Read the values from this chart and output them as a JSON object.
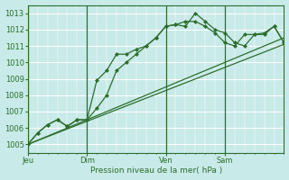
{
  "background_color": "#c8eae8",
  "grid_major_color": "#b8d8d8",
  "grid_minor_color": "#d0e8e8",
  "line_color": "#2d6e2d",
  "marker_color": "#2d6e2d",
  "xlabel": "Pression niveau de la mer( hPa )",
  "ylim": [
    1004.5,
    1013.5
  ],
  "yticks": [
    1005,
    1006,
    1007,
    1008,
    1009,
    1010,
    1011,
    1012,
    1013
  ],
  "day_labels": [
    "Jeu",
    "Dim",
    "Ven",
    "Sam"
  ],
  "day_positions": [
    0,
    72,
    168,
    240
  ],
  "total_hours": 312,
  "lines": [
    {
      "x": [
        0,
        12,
        24,
        36,
        48,
        60,
        72,
        84,
        96,
        108,
        120,
        132,
        144,
        156,
        168,
        180,
        192,
        204,
        216,
        228,
        240,
        252,
        264,
        276,
        288,
        300,
        312
      ],
      "y": [
        1005.0,
        1005.7,
        1006.2,
        1006.5,
        1006.1,
        1006.5,
        1006.5,
        1008.9,
        1009.5,
        1010.5,
        1010.5,
        1010.8,
        1011.0,
        1011.5,
        1012.2,
        1012.3,
        1012.2,
        1013.0,
        1012.5,
        1012.0,
        1011.8,
        1011.2,
        1011.0,
        1011.7,
        1011.7,
        1012.2,
        1011.2
      ]
    },
    {
      "x": [
        0,
        12,
        24,
        36,
        48,
        60,
        72,
        84,
        96,
        108,
        120,
        132,
        144,
        156,
        168,
        180,
        192,
        204,
        216,
        228,
        240,
        252,
        264,
        276,
        288,
        300,
        312
      ],
      "y": [
        1005.0,
        1005.7,
        1006.2,
        1006.5,
        1006.1,
        1006.5,
        1006.5,
        1007.2,
        1008.0,
        1009.5,
        1010.0,
        1010.5,
        1011.0,
        1011.5,
        1012.2,
        1012.3,
        1012.5,
        1012.5,
        1012.2,
        1011.8,
        1011.2,
        1011.0,
        1011.7,
        1011.7,
        1011.8,
        1012.2,
        1011.2
      ]
    },
    {
      "x": [
        0,
        312
      ],
      "y": [
        1005.0,
        1011.1
      ]
    },
    {
      "x": [
        0,
        312
      ],
      "y": [
        1005.0,
        1011.5
      ]
    }
  ],
  "figsize": [
    3.2,
    2.0
  ],
  "dpi": 100
}
